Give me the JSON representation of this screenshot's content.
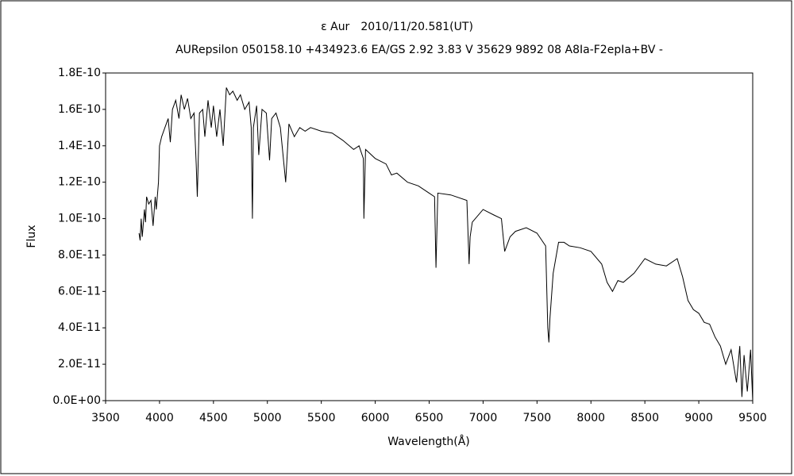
{
  "chart_data": {
    "type": "line",
    "title": "ε Aur　2010/11/20.581(UT)",
    "subtitle": "AURepsilon 050158.10 +434923.6 EA/GS 2.92 3.83 V 35629 9892 08 A8Ia-F2epIa+BV -",
    "x_label": "Wavelength(Å)",
    "y_label": "Flux",
    "xlim": [
      3500,
      9500
    ],
    "xticks": [
      3500,
      4000,
      4500,
      5000,
      5500,
      6000,
      6500,
      7000,
      7500,
      8000,
      8500,
      9000,
      9500
    ],
    "ylim": [
      0,
      1.8e-10
    ],
    "yticks": [
      {
        "value": 0,
        "label": "0.0E+00"
      },
      {
        "value": 2e-11,
        "label": "2.0E-11"
      },
      {
        "value": 4e-11,
        "label": "4.0E-11"
      },
      {
        "value": 6e-11,
        "label": "6.0E-11"
      },
      {
        "value": 8e-11,
        "label": "8.0E-11"
      },
      {
        "value": 1e-10,
        "label": "1.0E-10"
      },
      {
        "value": 1.2e-10,
        "label": "1.2E-10"
      },
      {
        "value": 1.4e-10,
        "label": "1.4E-10"
      },
      {
        "value": 1.6e-10,
        "label": "1.6E-10"
      },
      {
        "value": 1.8e-10,
        "label": "1.8E-10"
      }
    ],
    "series": [
      {
        "color": "#000000",
        "x": [
          3810,
          3820,
          3830,
          3840,
          3860,
          3870,
          3880,
          3900,
          3920,
          3940,
          3960,
          3970,
          3990,
          4000,
          4020,
          4050,
          4080,
          4100,
          4120,
          4150,
          4180,
          4200,
          4230,
          4260,
          4290,
          4320,
          4340,
          4350,
          4370,
          4400,
          4420,
          4450,
          4480,
          4500,
          4530,
          4560,
          4590,
          4620,
          4650,
          4680,
          4720,
          4750,
          4790,
          4830,
          4850,
          4861,
          4870,
          4900,
          4920,
          4950,
          4990,
          5020,
          5040,
          5080,
          5120,
          5170,
          5200,
          5250,
          5300,
          5350,
          5400,
          5500,
          5600,
          5700,
          5800,
          5850,
          5890,
          5895,
          5910,
          6000,
          6100,
          6150,
          6200,
          6300,
          6400,
          6500,
          6550,
          6563,
          6580,
          6700,
          6850,
          6870,
          6880,
          6900,
          7000,
          7100,
          7170,
          7200,
          7250,
          7300,
          7400,
          7500,
          7580,
          7600,
          7610,
          7620,
          7650,
          7700,
          7750,
          7800,
          7900,
          8000,
          8100,
          8150,
          8200,
          8250,
          8300,
          8400,
          8500,
          8600,
          8700,
          8800,
          8850,
          8900,
          8950,
          9000,
          9050,
          9100,
          9150,
          9200,
          9250,
          9300,
          9350,
          9380,
          9400,
          9420,
          9450,
          9480,
          9500
        ],
        "values": [
          9.2e-11,
          8.8e-11,
          1e-10,
          9e-11,
          1.05e-10,
          9.8e-11,
          1.12e-10,
          1.08e-10,
          1.1e-10,
          9.6e-11,
          1.12e-10,
          1.05e-10,
          1.2e-10,
          1.4e-10,
          1.45e-10,
          1.5e-10,
          1.55e-10,
          1.42e-10,
          1.6e-10,
          1.65e-10,
          1.55e-10,
          1.68e-10,
          1.6e-10,
          1.66e-10,
          1.55e-10,
          1.58e-10,
          1.3e-10,
          1.12e-10,
          1.58e-10,
          1.6e-10,
          1.45e-10,
          1.65e-10,
          1.5e-10,
          1.62e-10,
          1.45e-10,
          1.6e-10,
          1.4e-10,
          1.72e-10,
          1.68e-10,
          1.7e-10,
          1.65e-10,
          1.68e-10,
          1.6e-10,
          1.64e-10,
          1.5e-10,
          1e-10,
          1.5e-10,
          1.62e-10,
          1.35e-10,
          1.6e-10,
          1.58e-10,
          1.32e-10,
          1.55e-10,
          1.58e-10,
          1.5e-10,
          1.2e-10,
          1.52e-10,
          1.45e-10,
          1.5e-10,
          1.48e-10,
          1.5e-10,
          1.48e-10,
          1.47e-10,
          1.43e-10,
          1.38e-10,
          1.4e-10,
          1.33e-10,
          1e-10,
          1.38e-10,
          1.33e-10,
          1.3e-10,
          1.24e-10,
          1.25e-10,
          1.2e-10,
          1.18e-10,
          1.14e-10,
          1.12e-10,
          7.3e-11,
          1.14e-10,
          1.13e-10,
          1.1e-10,
          7.5e-11,
          9e-11,
          9.8e-11,
          1.05e-10,
          1.02e-10,
          1e-10,
          8.2e-11,
          9e-11,
          9.3e-11,
          9.5e-11,
          9.2e-11,
          8.5e-11,
          4e-11,
          3.2e-11,
          4.5e-11,
          7e-11,
          8.7e-11,
          8.7e-11,
          8.5e-11,
          8.4e-11,
          8.2e-11,
          7.5e-11,
          6.5e-11,
          6e-11,
          6.6e-11,
          6.5e-11,
          7e-11,
          7.8e-11,
          7.5e-11,
          7.4e-11,
          7.8e-11,
          6.8e-11,
          5.5e-11,
          5e-11,
          4.8e-11,
          4.3e-11,
          4.2e-11,
          3.5e-11,
          3e-11,
          2e-11,
          2.8e-11,
          1e-11,
          3e-11,
          2e-12,
          2.5e-11,
          5e-12,
          2.8e-11,
          0.0
        ]
      }
    ]
  }
}
